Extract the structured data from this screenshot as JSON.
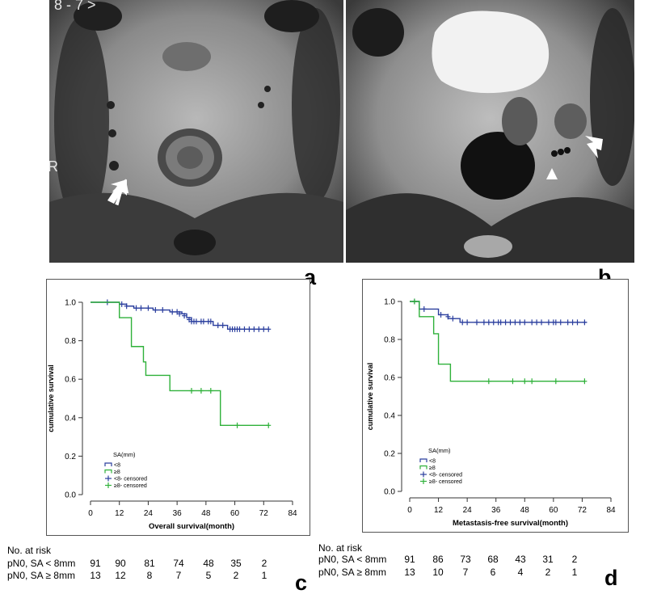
{
  "panels": {
    "a": {
      "label": "a",
      "overlay_text": "8 - 7 >",
      "side_marker": "R"
    },
    "b": {
      "label": "b"
    },
    "c": {
      "label": "c"
    },
    "d": {
      "label": "d"
    }
  },
  "chart_data": [
    {
      "type": "line",
      "panel": "c",
      "title": "",
      "xlabel": "Overall survival(month)",
      "ylabel": "cumulative survival",
      "xlim": [
        0,
        84
      ],
      "ylim": [
        0,
        1.0
      ],
      "xticks": [
        "0",
        "12",
        "24",
        "36",
        "48",
        "60",
        "72",
        "84"
      ],
      "yticks": [
        "0.0",
        "0.2",
        "0.4",
        "0.6",
        "0.8",
        "1.0"
      ],
      "legend": {
        "title": "SA(mm)",
        "entries": [
          "<8",
          "≥8",
          "<8- censored",
          "≥8- censored"
        ],
        "position": "bottom-left"
      },
      "colors": {
        "lt8": "#2b3f9e",
        "ge8": "#2fb13a"
      },
      "series": [
        {
          "name": "<8",
          "color": "#2b3f9e",
          "steps": [
            [
              0,
              1.0
            ],
            [
              12,
              0.99
            ],
            [
              15,
              0.98
            ],
            [
              18,
              0.97
            ],
            [
              26,
              0.96
            ],
            [
              33,
              0.95
            ],
            [
              38,
              0.94
            ],
            [
              40,
              0.92
            ],
            [
              42,
              0.9
            ],
            [
              51,
              0.88
            ],
            [
              57,
              0.86
            ],
            [
              74,
              0.86
            ]
          ],
          "censored": [
            [
              7,
              1.0
            ],
            [
              13,
              0.99
            ],
            [
              15,
              0.98
            ],
            [
              19,
              0.97
            ],
            [
              21,
              0.97
            ],
            [
              24,
              0.97
            ],
            [
              27,
              0.96
            ],
            [
              30,
              0.96
            ],
            [
              34,
              0.95
            ],
            [
              36,
              0.95
            ],
            [
              37,
              0.94
            ],
            [
              39,
              0.93
            ],
            [
              41,
              0.91
            ],
            [
              42,
              0.9
            ],
            [
              43,
              0.9
            ],
            [
              44,
              0.9
            ],
            [
              46,
              0.9
            ],
            [
              47,
              0.9
            ],
            [
              49,
              0.9
            ],
            [
              50,
              0.9
            ],
            [
              53,
              0.88
            ],
            [
              55,
              0.88
            ],
            [
              58,
              0.86
            ],
            [
              59,
              0.86
            ],
            [
              60,
              0.86
            ],
            [
              61,
              0.86
            ],
            [
              62,
              0.86
            ],
            [
              64,
              0.86
            ],
            [
              66,
              0.86
            ],
            [
              68,
              0.86
            ],
            [
              70,
              0.86
            ],
            [
              72,
              0.86
            ],
            [
              74,
              0.86
            ]
          ]
        },
        {
          "name": "≥8",
          "color": "#2fb13a",
          "steps": [
            [
              0,
              1.0
            ],
            [
              12,
              0.92
            ],
            [
              17,
              0.77
            ],
            [
              22,
              0.69
            ],
            [
              23,
              0.62
            ],
            [
              33,
              0.54
            ],
            [
              54,
              0.36
            ],
            [
              74,
              0.36
            ]
          ],
          "censored": [
            [
              42,
              0.54
            ],
            [
              46,
              0.54
            ],
            [
              50,
              0.54
            ],
            [
              61,
              0.36
            ],
            [
              74,
              0.36
            ]
          ]
        }
      ],
      "risk_table": {
        "title": "No. at risk",
        "rows": [
          {
            "label": "pN0, SA < 8mm",
            "values": [
              "91",
              "90",
              "81",
              "74",
              "48",
              "35",
              "2"
            ]
          },
          {
            "label": "pN0, SA ≥ 8mm",
            "values": [
              "13",
              "12",
              "8",
              "7",
              "5",
              "2",
              "1"
            ]
          }
        ]
      }
    },
    {
      "type": "line",
      "panel": "d",
      "title": "",
      "xlabel": "Metastasis-free survival(month)",
      "ylabel": "cumulative survival",
      "xlim": [
        0,
        84
      ],
      "ylim": [
        0,
        1.0
      ],
      "xticks": [
        "0",
        "12",
        "24",
        "36",
        "48",
        "60",
        "72",
        "84"
      ],
      "yticks": [
        "0.0",
        "0.2",
        "0.4",
        "0.6",
        "0.8",
        "1.0"
      ],
      "legend": {
        "title": "SA(mm)",
        "entries": [
          "<8",
          "≥8",
          "<8- censored",
          "≥8- censored"
        ],
        "position": "bottom-left"
      },
      "colors": {
        "lt8": "#2b3f9e",
        "ge8": "#2fb13a"
      },
      "series": [
        {
          "name": "<8",
          "color": "#2b3f9e",
          "steps": [
            [
              0,
              1.0
            ],
            [
              4,
              0.96
            ],
            [
              12,
              0.93
            ],
            [
              16,
              0.91
            ],
            [
              21,
              0.89
            ],
            [
              74,
              0.89
            ]
          ],
          "censored": [
            [
              2,
              1.0
            ],
            [
              6,
              0.96
            ],
            [
              13,
              0.93
            ],
            [
              16,
              0.92
            ],
            [
              18,
              0.91
            ],
            [
              22,
              0.89
            ],
            [
              24,
              0.89
            ],
            [
              28,
              0.89
            ],
            [
              31,
              0.89
            ],
            [
              33,
              0.89
            ],
            [
              35,
              0.89
            ],
            [
              37,
              0.89
            ],
            [
              38,
              0.89
            ],
            [
              40,
              0.89
            ],
            [
              42,
              0.89
            ],
            [
              44,
              0.89
            ],
            [
              46,
              0.89
            ],
            [
              48,
              0.89
            ],
            [
              51,
              0.89
            ],
            [
              53,
              0.89
            ],
            [
              55,
              0.89
            ],
            [
              58,
              0.89
            ],
            [
              60,
              0.89
            ],
            [
              61,
              0.89
            ],
            [
              63,
              0.89
            ],
            [
              66,
              0.89
            ],
            [
              68,
              0.89
            ],
            [
              70,
              0.89
            ],
            [
              73,
              0.89
            ]
          ]
        },
        {
          "name": "≥8",
          "color": "#2fb13a",
          "steps": [
            [
              0,
              1.0
            ],
            [
              4,
              0.92
            ],
            [
              10,
              0.83
            ],
            [
              12,
              0.67
            ],
            [
              17,
              0.58
            ],
            [
              73,
              0.58
            ]
          ],
          "censored": [
            [
              2,
              1.0
            ],
            [
              33,
              0.58
            ],
            [
              43,
              0.58
            ],
            [
              48,
              0.58
            ],
            [
              51,
              0.58
            ],
            [
              61,
              0.58
            ],
            [
              73,
              0.58
            ]
          ]
        }
      ],
      "risk_table": {
        "title": "No. at risk",
        "rows": [
          {
            "label": "pN0, SA < 8mm",
            "values": [
              "91",
              "86",
              "73",
              "68",
              "43",
              "31",
              "2"
            ]
          },
          {
            "label": "pN0, SA ≥ 8mm",
            "values": [
              "13",
              "10",
              "7",
              "6",
              "4",
              "2",
              "1"
            ]
          }
        ]
      }
    }
  ]
}
